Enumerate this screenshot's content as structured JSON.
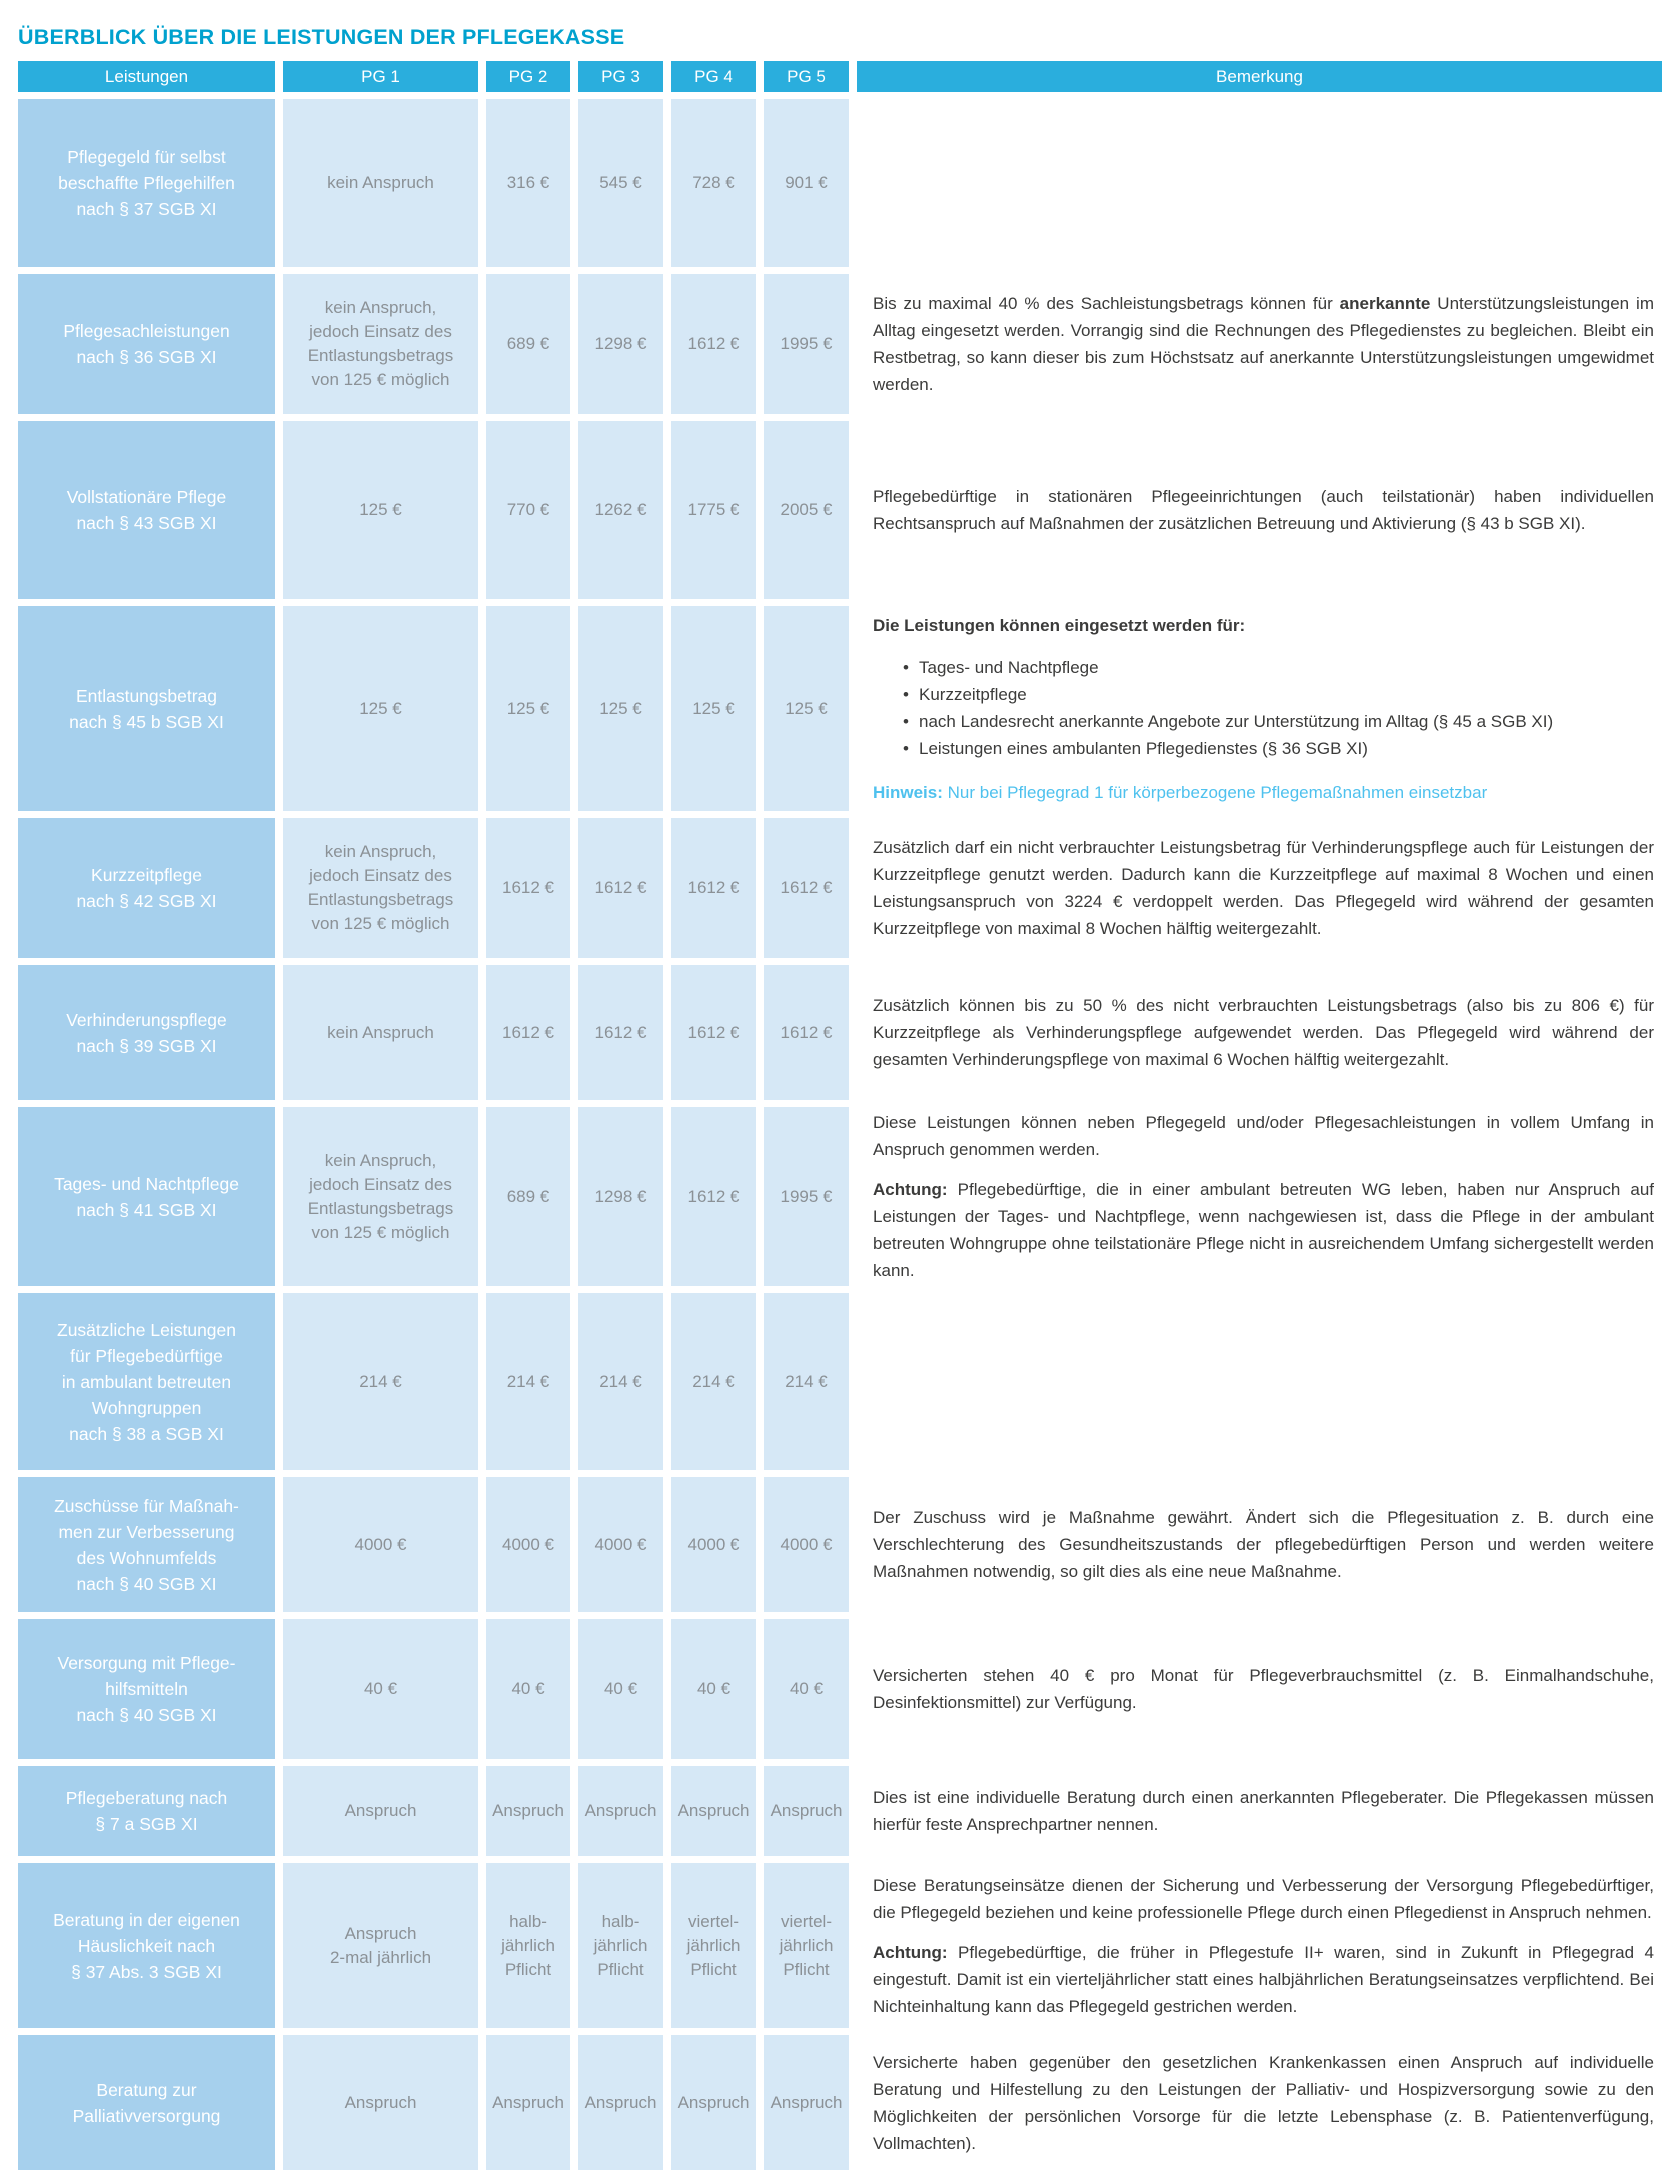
{
  "title": "ÜBERBLICK ÜBER DIE LEISTUNGEN DER PFLEGEKASSE",
  "colors": {
    "title_text": "#00a1ce",
    "header_bg": "#2aaedd",
    "label_cell_bg": "#a6d0ed",
    "value_cell_bg": "#d6e8f6",
    "value_text": "#8b9196",
    "remark_text": "#3b3b3a",
    "hinweis_blue": "#4ec1ee"
  },
  "table": {
    "headers": [
      "Leistungen",
      "PG 1",
      "PG 2",
      "PG 3",
      "PG 4",
      "PG 5",
      "Bemerkung"
    ],
    "rows": [
      {
        "label": "Pflegegeld für selbst\nbeschaffte Pflegehilfen\nnach § 37 SGB XI",
        "values": [
          "kein Anspruch",
          "316 €",
          "545 €",
          "728 €",
          "901 €"
        ],
        "remark": []
      },
      {
        "label": "Pflegesachleistungen\nnach § 36 SGB XI",
        "values": [
          "kein Anspruch,\njedoch Einsatz des\nEntlastungsbetrags\nvon 125 € möglich",
          "689 €",
          "1298 €",
          "1612 €",
          "1995 €"
        ],
        "remark": [
          {
            "type": "p",
            "segments": [
              {
                "t": "Bis zu maximal 40 % des Sachleistungsbetrags können für "
              },
              {
                "t": "anerkannte",
                "b": true
              },
              {
                "t": " Unterstützungsleistungen im Alltag eingesetzt werden. Vorrangig sind die Rechnungen des Pflegedienstes zu begleichen. Bleibt ein Restbetrag, so kann dieser bis zum Höchstsatz auf anerkannte Unterstützungsleistungen umgewidmet werden."
              }
            ]
          }
        ]
      },
      {
        "label": "Vollstationäre Pflege\nnach § 43 SGB XI",
        "values": [
          "125 €",
          "770 €",
          "1262 €",
          "1775 €",
          "2005 €"
        ],
        "remark": [
          {
            "type": "p",
            "segments": [
              {
                "t": "Pflegebedürftige in stationären Pflegeeinrichtungen (auch teilstationär) haben individuellen Rechtsanspruch auf Maßnahmen der zusätzlichen Betreuung und Aktivierung (§ 43 b SGB XI)."
              }
            ]
          }
        ]
      },
      {
        "label": "Entlastungsbetrag\nnach § 45 b SGB XI",
        "values": [
          "125 €",
          "125 €",
          "125 €",
          "125 €",
          "125 €"
        ],
        "remark": [
          {
            "type": "p",
            "segments": [
              {
                "t": "Die Leistungen können eingesetzt werden für:",
                "b": true
              }
            ]
          },
          {
            "type": "bullets",
            "items": [
              "Tages- und Nachtpflege",
              "Kurzzeitpflege",
              "nach Landesrecht anerkannte Angebote zur Unterstützung im Alltag (§ 45 a SGB XI)",
              "Leistungen eines ambulanten Pflegedienstes (§ 36 SGB XI)"
            ]
          },
          {
            "type": "p",
            "segments": [
              {
                "t": "Hinweis:",
                "b": true,
                "h": true
              },
              {
                "t": " Nur bei Pflegegrad 1 für körperbezogene Pflegemaßnahmen einsetzbar",
                "h": true
              }
            ]
          }
        ]
      },
      {
        "label": "Kurzzeitpflege\nnach § 42 SGB XI",
        "values": [
          "kein Anspruch,\njedoch Einsatz des\nEntlastungsbetrags\nvon 125 € möglich",
          "1612 €",
          "1612 €",
          "1612 €",
          "1612 €"
        ],
        "remark": [
          {
            "type": "p",
            "segments": [
              {
                "t": "Zusätzlich darf ein nicht verbrauchter Leistungsbetrag für Verhinderungspflege auch für Leistungen der Kurzzeitpflege genutzt werden. Dadurch kann die Kurzzeitpflege auf maximal 8 Wochen und einen Leistungsanspruch von 3224 € verdoppelt werden. Das Pflegegeld wird während der gesamten Kurzzeitpflege von maximal 8 Wochen hälftig weitergezahlt."
              }
            ]
          }
        ]
      },
      {
        "label": "Verhinderungspflege\nnach § 39 SGB XI",
        "values": [
          "kein Anspruch",
          "1612 €",
          "1612 €",
          "1612 €",
          "1612 €"
        ],
        "remark": [
          {
            "type": "p",
            "segments": [
              {
                "t": "Zusätzlich können bis zu 50 % des nicht verbrauchten Leistungsbetrags (also bis zu 806 €) für Kurzzeitpflege als Verhinderungspflege aufgewendet werden. Das Pflegegeld wird während der gesamten Verhinderungspflege von maximal 6 Wochen hälftig weitergezahlt."
              }
            ]
          }
        ]
      },
      {
        "label": "Tages- und Nachtpflege\nnach § 41 SGB XI",
        "values": [
          "kein Anspruch,\njedoch Einsatz des\nEntlastungsbetrags\nvon 125 € möglich",
          "689 €",
          "1298 €",
          "1612 €",
          "1995 €"
        ],
        "remark": [
          {
            "type": "p",
            "segments": [
              {
                "t": "Diese Leistungen können neben Pflegegeld und/oder Pflegesachleistungen in vollem Umfang in Anspruch genommen werden."
              }
            ]
          },
          {
            "type": "p",
            "segments": [
              {
                "t": "Achtung:",
                "b": true
              },
              {
                "t": " Pflegebedürftige, die in einer ambulant betreuten WG leben, haben nur Anspruch auf Leistungen der Tages- und Nachtpflege, wenn nachgewiesen ist, dass die Pflege in der ambulant betreuten Wohngruppe ohne teilstationäre Pflege nicht in ausreichendem Umfang sichergestellt werden kann."
              }
            ]
          }
        ]
      },
      {
        "label": "Zusätzliche Leistungen\nfür Pflegebedürftige\nin ambulant betreuten\nWohngruppen\nnach § 38 a SGB XI",
        "values": [
          "214 €",
          "214 €",
          "214 €",
          "214 €",
          "214 €"
        ],
        "remark": []
      },
      {
        "label": "Zuschüsse für Maßnah-\nmen zur Verbesserung\ndes Wohnumfelds\nnach § 40 SGB XI",
        "values": [
          "4000 €",
          "4000 €",
          "4000 €",
          "4000 €",
          "4000 €"
        ],
        "remark": [
          {
            "type": "p",
            "segments": [
              {
                "t": "Der Zuschuss wird je Maßnahme gewährt. Ändert sich die Pflegesituation z. B. durch eine Verschlechterung des Gesundheitszustands der pflegebedürftigen Person und werden weitere Maßnahmen notwendig, so gilt dies als eine neue Maßnahme."
              }
            ]
          }
        ]
      },
      {
        "label": "Versorgung mit Pflege-\nhilfsmitteln\nnach § 40 SGB XI",
        "values": [
          "40 €",
          "40 €",
          "40 €",
          "40 €",
          "40 €"
        ],
        "remark": [
          {
            "type": "p",
            "segments": [
              {
                "t": "Versicherten stehen 40 € pro Monat für Pflegeverbrauchsmittel (z. B. Einmalhandschuhe, Desinfektionsmittel) zur Verfügung."
              }
            ]
          }
        ]
      },
      {
        "label": "Pflegeberatung nach\n§ 7 a SGB XI",
        "values": [
          "Anspruch",
          "Anspruch",
          "Anspruch",
          "Anspruch",
          "Anspruch"
        ],
        "remark": [
          {
            "type": "p",
            "segments": [
              {
                "t": "Dies ist eine individuelle Beratung durch einen anerkannten Pflegeberater. Die Pflegekassen müssen hierfür feste Ansprechpartner nennen."
              }
            ]
          }
        ]
      },
      {
        "label": "Beratung in der eigenen\nHäuslichkeit nach\n§ 37 Abs. 3 SGB XI",
        "values": [
          "Anspruch\n2-mal jährlich",
          "halb-\njährlich\nPflicht",
          "halb-\njährlich\nPflicht",
          "viertel-\njährlich\nPflicht",
          "viertel-\njährlich\nPflicht"
        ],
        "remark": [
          {
            "type": "p",
            "segments": [
              {
                "t": "Diese Beratungseinsätze dienen der Sicherung und Verbesserung der Versorgung Pflegebedürftiger, die Pflegegeld beziehen und keine professionelle Pflege durch einen Pflegedienst in Anspruch nehmen."
              }
            ]
          },
          {
            "type": "p",
            "segments": [
              {
                "t": "Achtung:",
                "b": true
              },
              {
                "t": " Pflegebedürftige, die früher in Pflegestufe II+ waren, sind in Zukunft in Pflegegrad 4 eingestuft. Damit ist ein vierteljährlicher statt eines halbjährlichen Beratungseinsatzes verpflichtend. Bei Nichteinhaltung kann das Pflegegeld gestrichen werden."
              }
            ]
          }
        ]
      },
      {
        "label": "Beratung zur\nPalliativversorgung",
        "values": [
          "Anspruch",
          "Anspruch",
          "Anspruch",
          "Anspruch",
          "Anspruch"
        ],
        "remark": [
          {
            "type": "p",
            "segments": [
              {
                "t": "Versicherte haben gegenüber den gesetzlichen Krankenkassen einen Anspruch auf individuelle Beratung und Hilfestellung zu den Leistungen der Palliativ- und Hospizversorgung sowie zu den Möglichkeiten der persönlichen Vorsorge für die letzte Lebensphase (z. B. Patientenverfügung, Vollmachten)."
              }
            ]
          }
        ]
      }
    ]
  }
}
